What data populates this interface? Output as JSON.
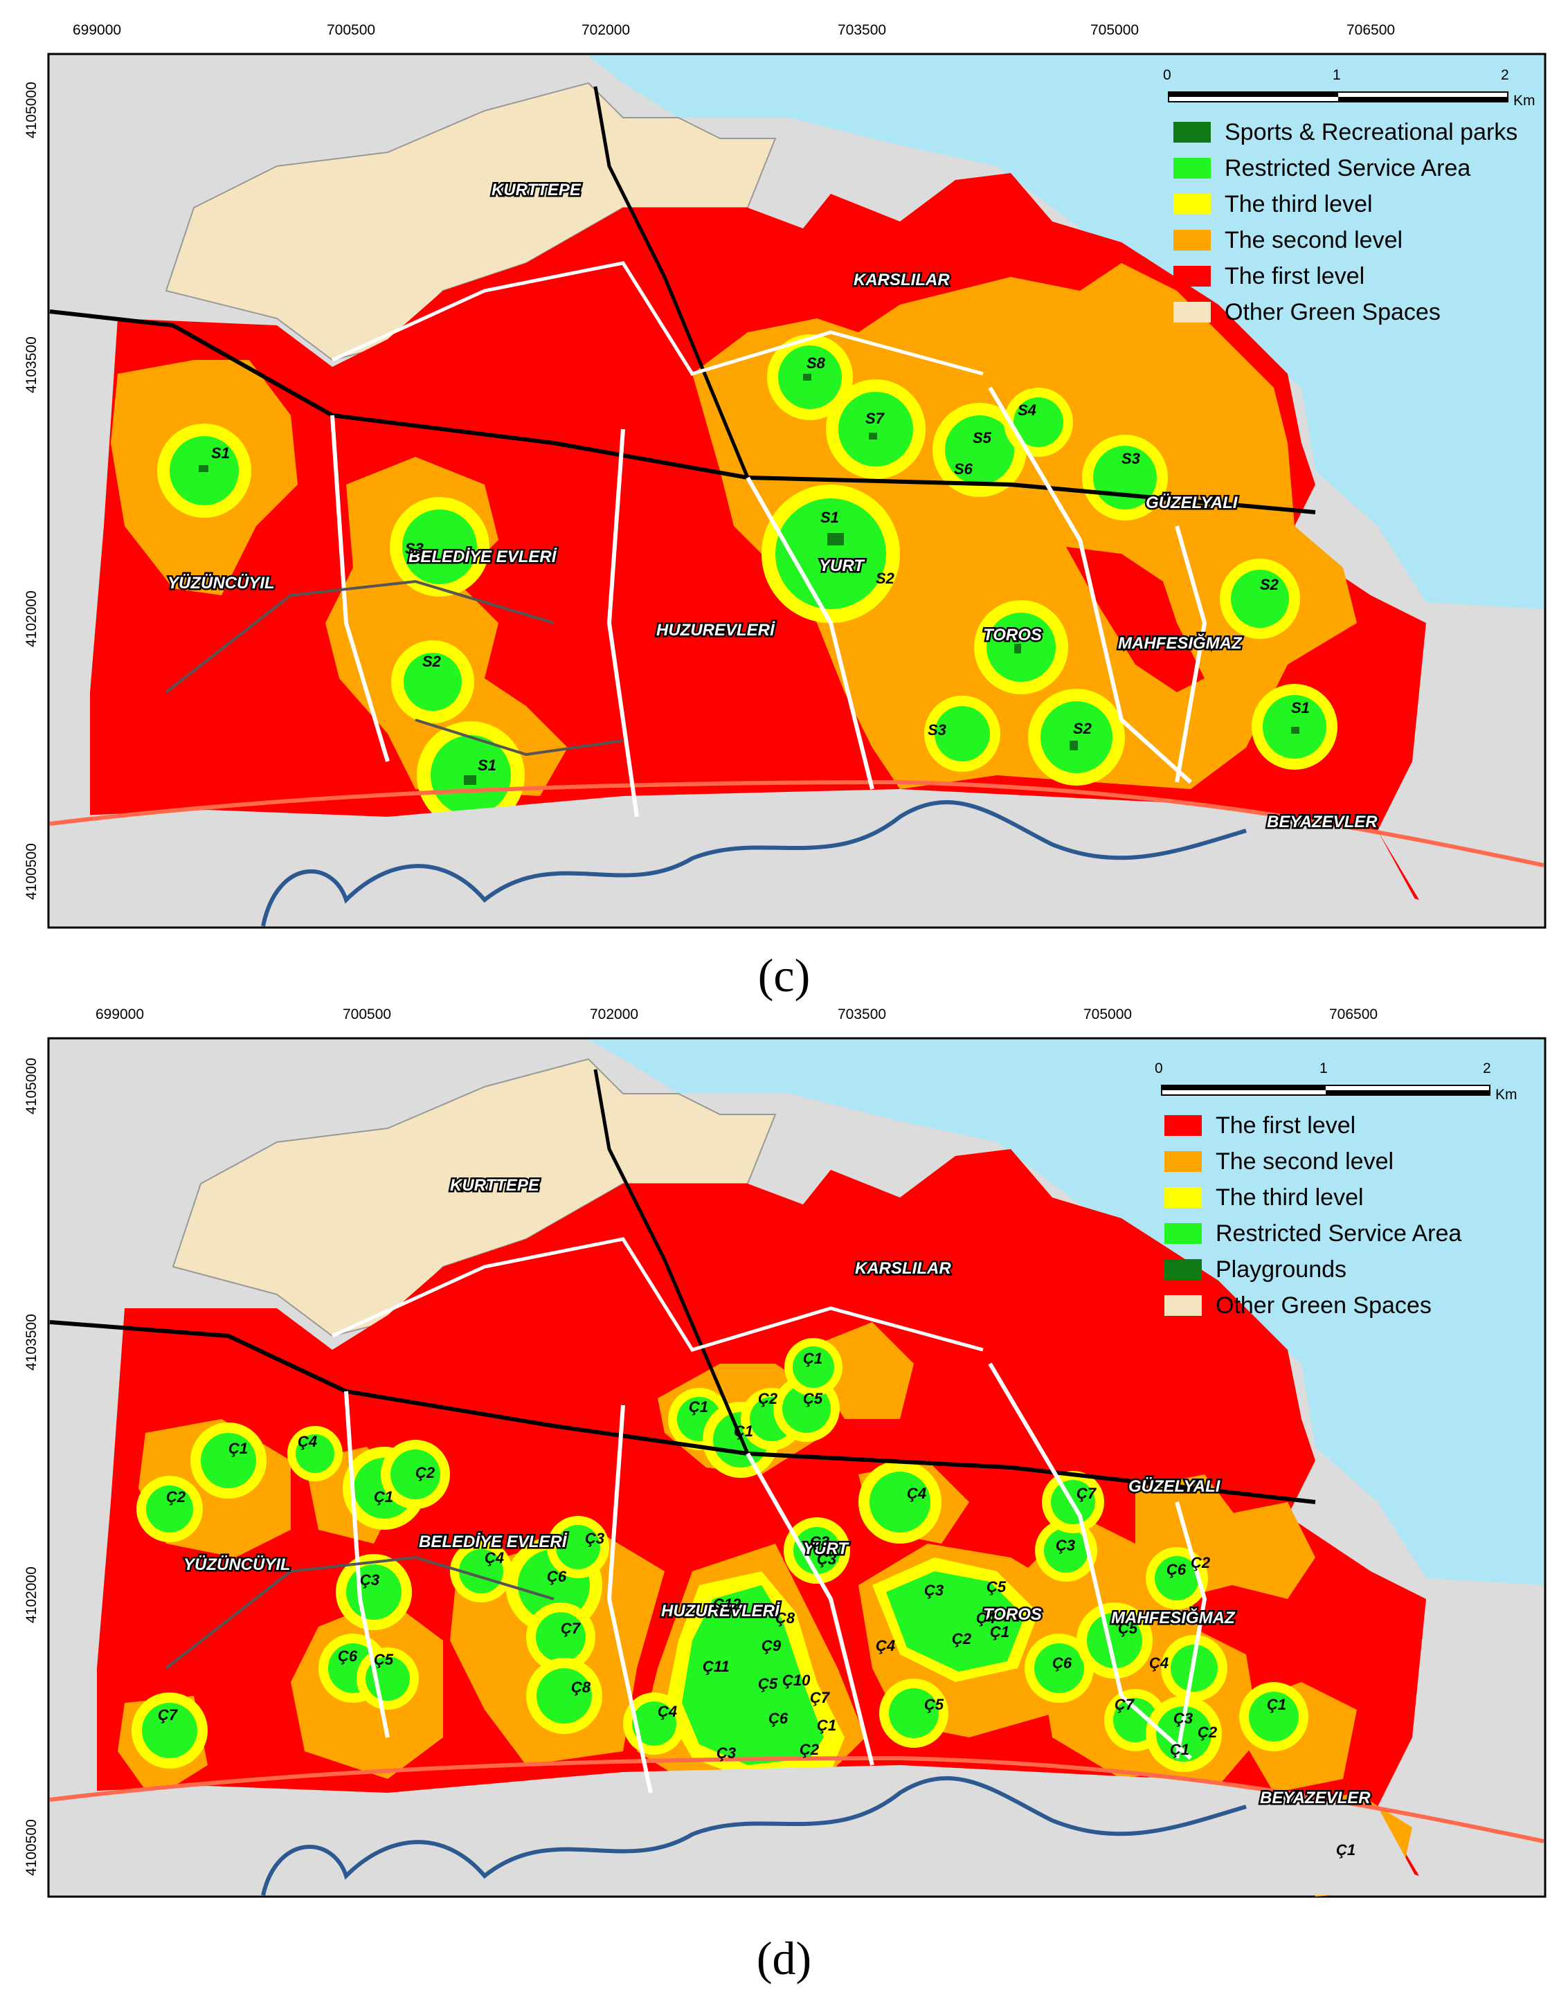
{
  "panels": [
    {
      "id": "c",
      "caption": "(c)",
      "x_ticks": [
        "699000",
        "700500",
        "702000",
        "703500",
        "705000",
        "706500"
      ],
      "y_ticks": [
        "4105000",
        "4103500",
        "4102000",
        "4100500"
      ],
      "scale": {
        "labels": [
          "0",
          "1",
          "2"
        ],
        "unit": "Km"
      },
      "legend": [
        {
          "label": "Sports & Recreational parks",
          "color": "#0f7a14"
        },
        {
          "label": "Restricted Service Area",
          "color": "#22f522"
        },
        {
          "label": "The third level",
          "color": "#ffff00"
        },
        {
          "label": "The second level",
          "color": "#ffa500"
        },
        {
          "label": "The first level",
          "color": "#ff0000"
        },
        {
          "label": "Other Green Spaces",
          "color": "#f5e4c0"
        }
      ],
      "neighborhoods": [
        "KURTTEPE",
        "KARSLILAR",
        "GÜZELYALI",
        "YÜZÜNCÜYIL",
        "BELEDİYE EVLERİ",
        "HUZUREVLERİ",
        "YURT",
        "TOROS",
        "MAHFESIĞMAZ",
        "BEYAZEVLER"
      ],
      "sites": [
        "S1",
        "S2",
        "S3",
        "S4",
        "S5",
        "S6",
        "S7",
        "S8"
      ]
    },
    {
      "id": "d",
      "caption": "(d)",
      "x_ticks": [
        "699000",
        "700500",
        "702000",
        "703500",
        "705000",
        "706500"
      ],
      "y_ticks": [
        "4105000",
        "4103500",
        "4102000",
        "4100500"
      ],
      "scale": {
        "labels": [
          "0",
          "1",
          "2"
        ],
        "unit": "Km"
      },
      "legend": [
        {
          "label": "The first level",
          "color": "#ff0000"
        },
        {
          "label": "The second level",
          "color": "#ffa500"
        },
        {
          "label": "The third level",
          "color": "#ffff00"
        },
        {
          "label": "Restricted Service Area",
          "color": "#22f522"
        },
        {
          "label": "Playgrounds",
          "color": "#0f7a14"
        },
        {
          "label": "Other Green Spaces",
          "color": "#f5e4c0"
        }
      ],
      "neighborhoods": [
        "KURTTEPE",
        "KARSLILAR",
        "GÜZELYALI",
        "YÜZÜNCÜYIL",
        "BELEDİYE EVLERİ",
        "HUZUREVLERİ",
        "YURT",
        "TOROS",
        "MAHFESIĞMAZ",
        "BEYAZEVLER"
      ],
      "sites": [
        "Ç1",
        "Ç2",
        "Ç3",
        "Ç4",
        "Ç5",
        "Ç6",
        "Ç7",
        "Ç8",
        "Ç9",
        "Ç10",
        "Ç11",
        "Ç12"
      ]
    }
  ]
}
